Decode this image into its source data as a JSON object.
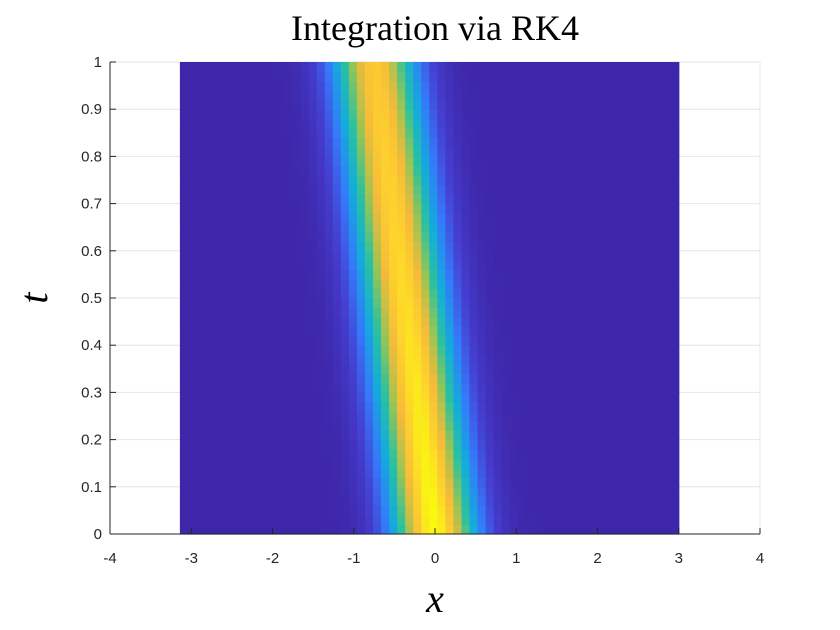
{
  "chart_data": {
    "type": "heatmap",
    "title": "Integration via RK4",
    "xlabel": "x",
    "ylabel": "t",
    "xlim": [
      -4,
      4
    ],
    "ylim": [
      0,
      1
    ],
    "xticks": [
      "-4",
      "-3",
      "-2",
      "-1",
      "0",
      "1",
      "2",
      "3",
      "4"
    ],
    "yticks": [
      "0",
      "0.1",
      "0.2",
      "0.3",
      "0.4",
      "0.5",
      "0.6",
      "0.7",
      "0.8",
      "0.9",
      "1"
    ],
    "grid": true,
    "colormap": "parula",
    "domain_x": [
      -3.14,
      3.0
    ],
    "field": {
      "description": "Travelling Gaussian pulse u(x,t) = exp(-((x - x0(t)) / w)^2)",
      "peak_x_at_t0": 0.0,
      "peak_x_at_t1": -0.75,
      "width": 0.55
    },
    "grid_size": {
      "nx": 62,
      "nt": 50
    }
  }
}
